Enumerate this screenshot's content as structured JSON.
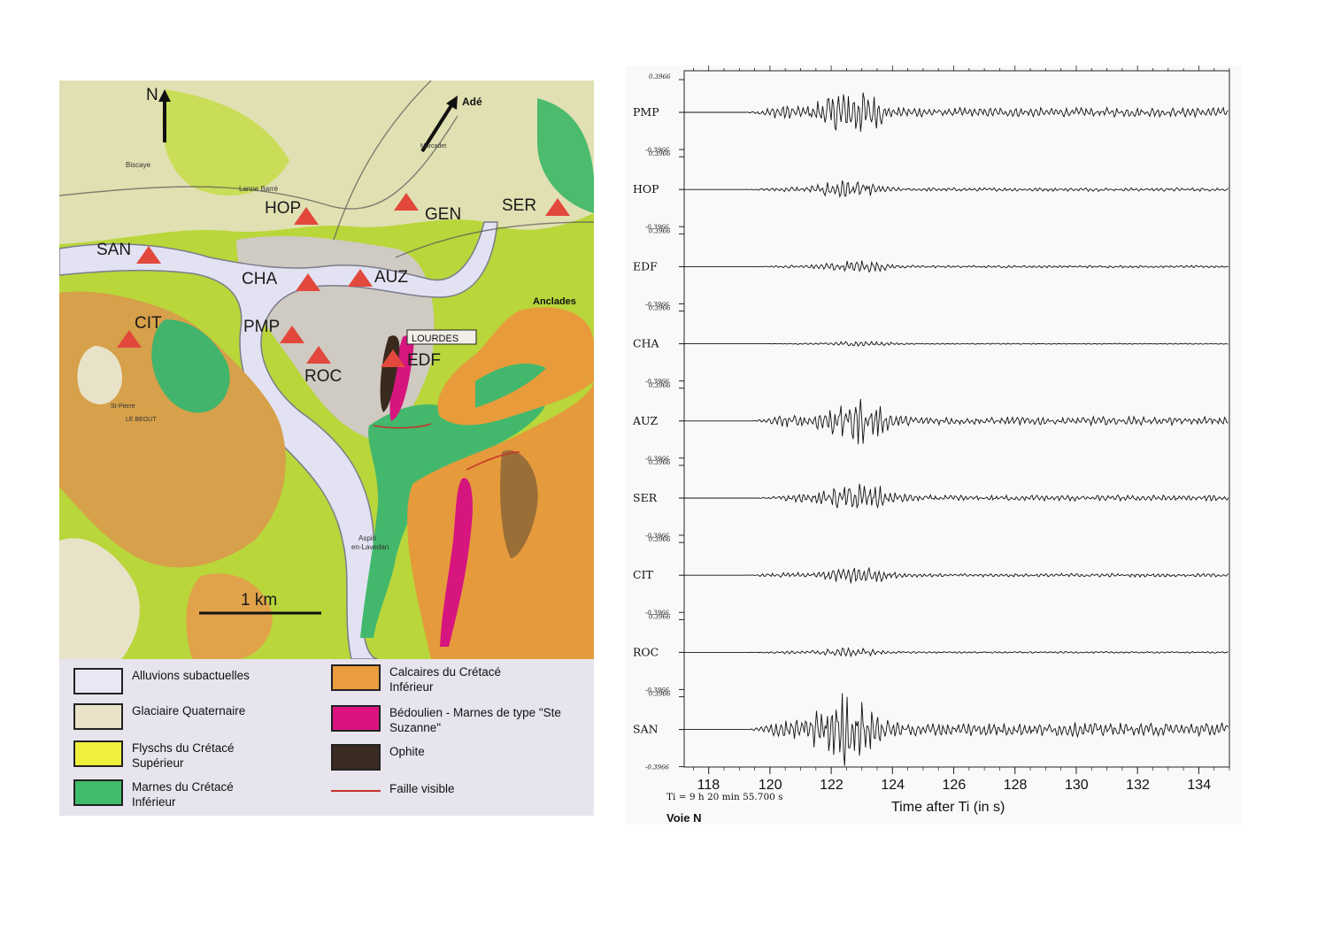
{
  "map": {
    "north_label": "N",
    "scale_label": "1 km",
    "place_labels": {
      "ade": "Adé",
      "anclades": "Anclades",
      "lourdes": "LOURDES",
      "beout": "LE BEOUT",
      "aspin": "Aspin",
      "lavedan": "en-Lavedan",
      "biscaye": "Biscaye",
      "lanne": "Lanne Barré",
      "marcadet": "Marcadet",
      "saint_pierre": "St-Pierre"
    },
    "stations": [
      {
        "name": "HOP",
        "marker": "red-triangle"
      },
      {
        "name": "GEN",
        "marker": "red-triangle"
      },
      {
        "name": "SER",
        "marker": "red-triangle"
      },
      {
        "name": "SAN",
        "marker": "red-triangle"
      },
      {
        "name": "CHA",
        "marker": "red-triangle"
      },
      {
        "name": "AUZ",
        "marker": "red-triangle"
      },
      {
        "name": "CIT",
        "marker": "red-triangle"
      },
      {
        "name": "PMP",
        "marker": "red-triangle"
      },
      {
        "name": "ROC",
        "marker": "red-triangle"
      },
      {
        "name": "EDF",
        "marker": "red-triangle"
      }
    ],
    "colors": {
      "alluvions": "#e2e2f3",
      "glaciaire": "#e8e2c8",
      "flyschs": "#d9e84a",
      "marnes": "#43b86c",
      "calcaires": "#e49a3c",
      "bedoulien": "#d6157f",
      "ophite": "#3a2a1e",
      "faille": "#c8332a",
      "station": "#e2483c"
    }
  },
  "legend": {
    "items": [
      {
        "label": "Alluvions subactuelles",
        "color": "#e8e8f4",
        "kind": "box"
      },
      {
        "label": "Glaciaire Quaternaire",
        "color": "#ebe3c9",
        "kind": "box"
      },
      {
        "label": "Flyschs du Crétacé Supérieur",
        "color": "#eef03c",
        "kind": "box"
      },
      {
        "label": "Marnes du Crétacé Inférieur",
        "color": "#3fbc6a",
        "kind": "box"
      },
      {
        "label": "Calcaires du Crétacé Inférieur",
        "color": "#eb9c3e",
        "kind": "box"
      },
      {
        "label": "Bédoulien - Marnes de type \"Ste Suzanne\"",
        "color": "#db127f",
        "kind": "box"
      },
      {
        "label": "Ophite",
        "color": "#3b2b22",
        "kind": "box"
      },
      {
        "label": "Faille visible",
        "color": "#c7312a",
        "kind": "line"
      }
    ]
  },
  "chart_data": {
    "type": "line",
    "title": "",
    "xlabel": "Time after Ti (in s)",
    "ylabel": "",
    "xlim": [
      117.2,
      135.0
    ],
    "x_ticks": [
      118,
      120,
      122,
      124,
      126,
      128,
      130,
      132,
      134
    ],
    "amplitude_scale": {
      "top": "0.3966",
      "bottom": "-0.3966"
    },
    "ti_note": "Ti = 9 h 20 min 55.700 s",
    "channel": "Voie N",
    "grid": false,
    "series": [
      {
        "name": "PMP",
        "onset_s": 119.2,
        "peak_time_s": 122.6,
        "peak_amplitude": 0.26
      },
      {
        "name": "HOP",
        "onset_s": 119.2,
        "peak_time_s": 122.5,
        "peak_amplitude": 0.1
      },
      {
        "name": "EDF",
        "onset_s": 119.5,
        "peak_time_s": 122.8,
        "peak_amplitude": 0.07
      },
      {
        "name": "CHA",
        "onset_s": 119.8,
        "peak_time_s": 123.0,
        "peak_amplitude": 0.03
      },
      {
        "name": "AUZ",
        "onset_s": 119.4,
        "peak_time_s": 122.8,
        "peak_amplitude": 0.24
      },
      {
        "name": "SER",
        "onset_s": 119.6,
        "peak_time_s": 122.9,
        "peak_amplitude": 0.17
      },
      {
        "name": "CIT",
        "onset_s": 119.2,
        "peak_time_s": 122.8,
        "peak_amplitude": 0.1
      },
      {
        "name": "ROC",
        "onset_s": 119.2,
        "peak_time_s": 122.5,
        "peak_amplitude": 0.05
      },
      {
        "name": "SAN",
        "onset_s": 119.3,
        "peak_time_s": 122.4,
        "peak_amplitude": 0.39
      }
    ]
  }
}
